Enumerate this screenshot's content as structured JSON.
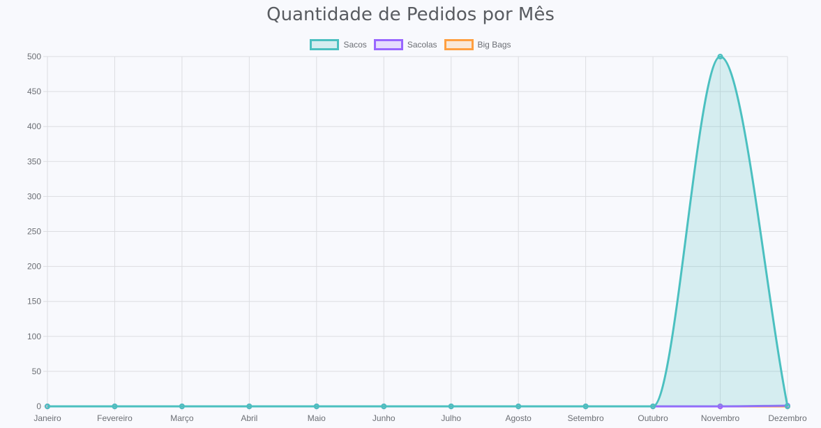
{
  "chart_data": {
    "type": "line",
    "title": "Quantidade de Pedidos por Mês",
    "categories": [
      "Janeiro",
      "Fevereiro",
      "Março",
      "Abril",
      "Maio",
      "Junho",
      "Julho",
      "Agosto",
      "Setembro",
      "Outubro",
      "Novembro",
      "Dezembro"
    ],
    "ylim": [
      0,
      500
    ],
    "yticks": [
      0,
      50,
      100,
      150,
      200,
      250,
      300,
      350,
      400,
      450,
      500
    ],
    "grid": true,
    "legend_position": "top-center",
    "series": [
      {
        "name": "Sacos",
        "values": [
          0,
          0,
          0,
          0,
          0,
          0,
          0,
          0,
          0,
          0,
          500,
          0
        ],
        "color": "#4bc0c0",
        "fill": "rgba(75,192,192,0.2)",
        "filled": true
      },
      {
        "name": "Sacolas",
        "values": [
          0,
          0,
          0,
          0,
          0,
          0,
          0,
          0,
          0,
          0,
          0,
          1
        ],
        "color": "#9966ff",
        "fill": "rgba(153,102,255,0.2)",
        "filled": false
      },
      {
        "name": "Big Bags",
        "values": [
          0,
          0,
          0,
          0,
          0,
          0,
          0,
          0,
          0,
          0,
          0,
          0
        ],
        "color": "#ff9f40",
        "fill": "rgba(255,159,64,0.2)",
        "filled": false
      }
    ]
  }
}
